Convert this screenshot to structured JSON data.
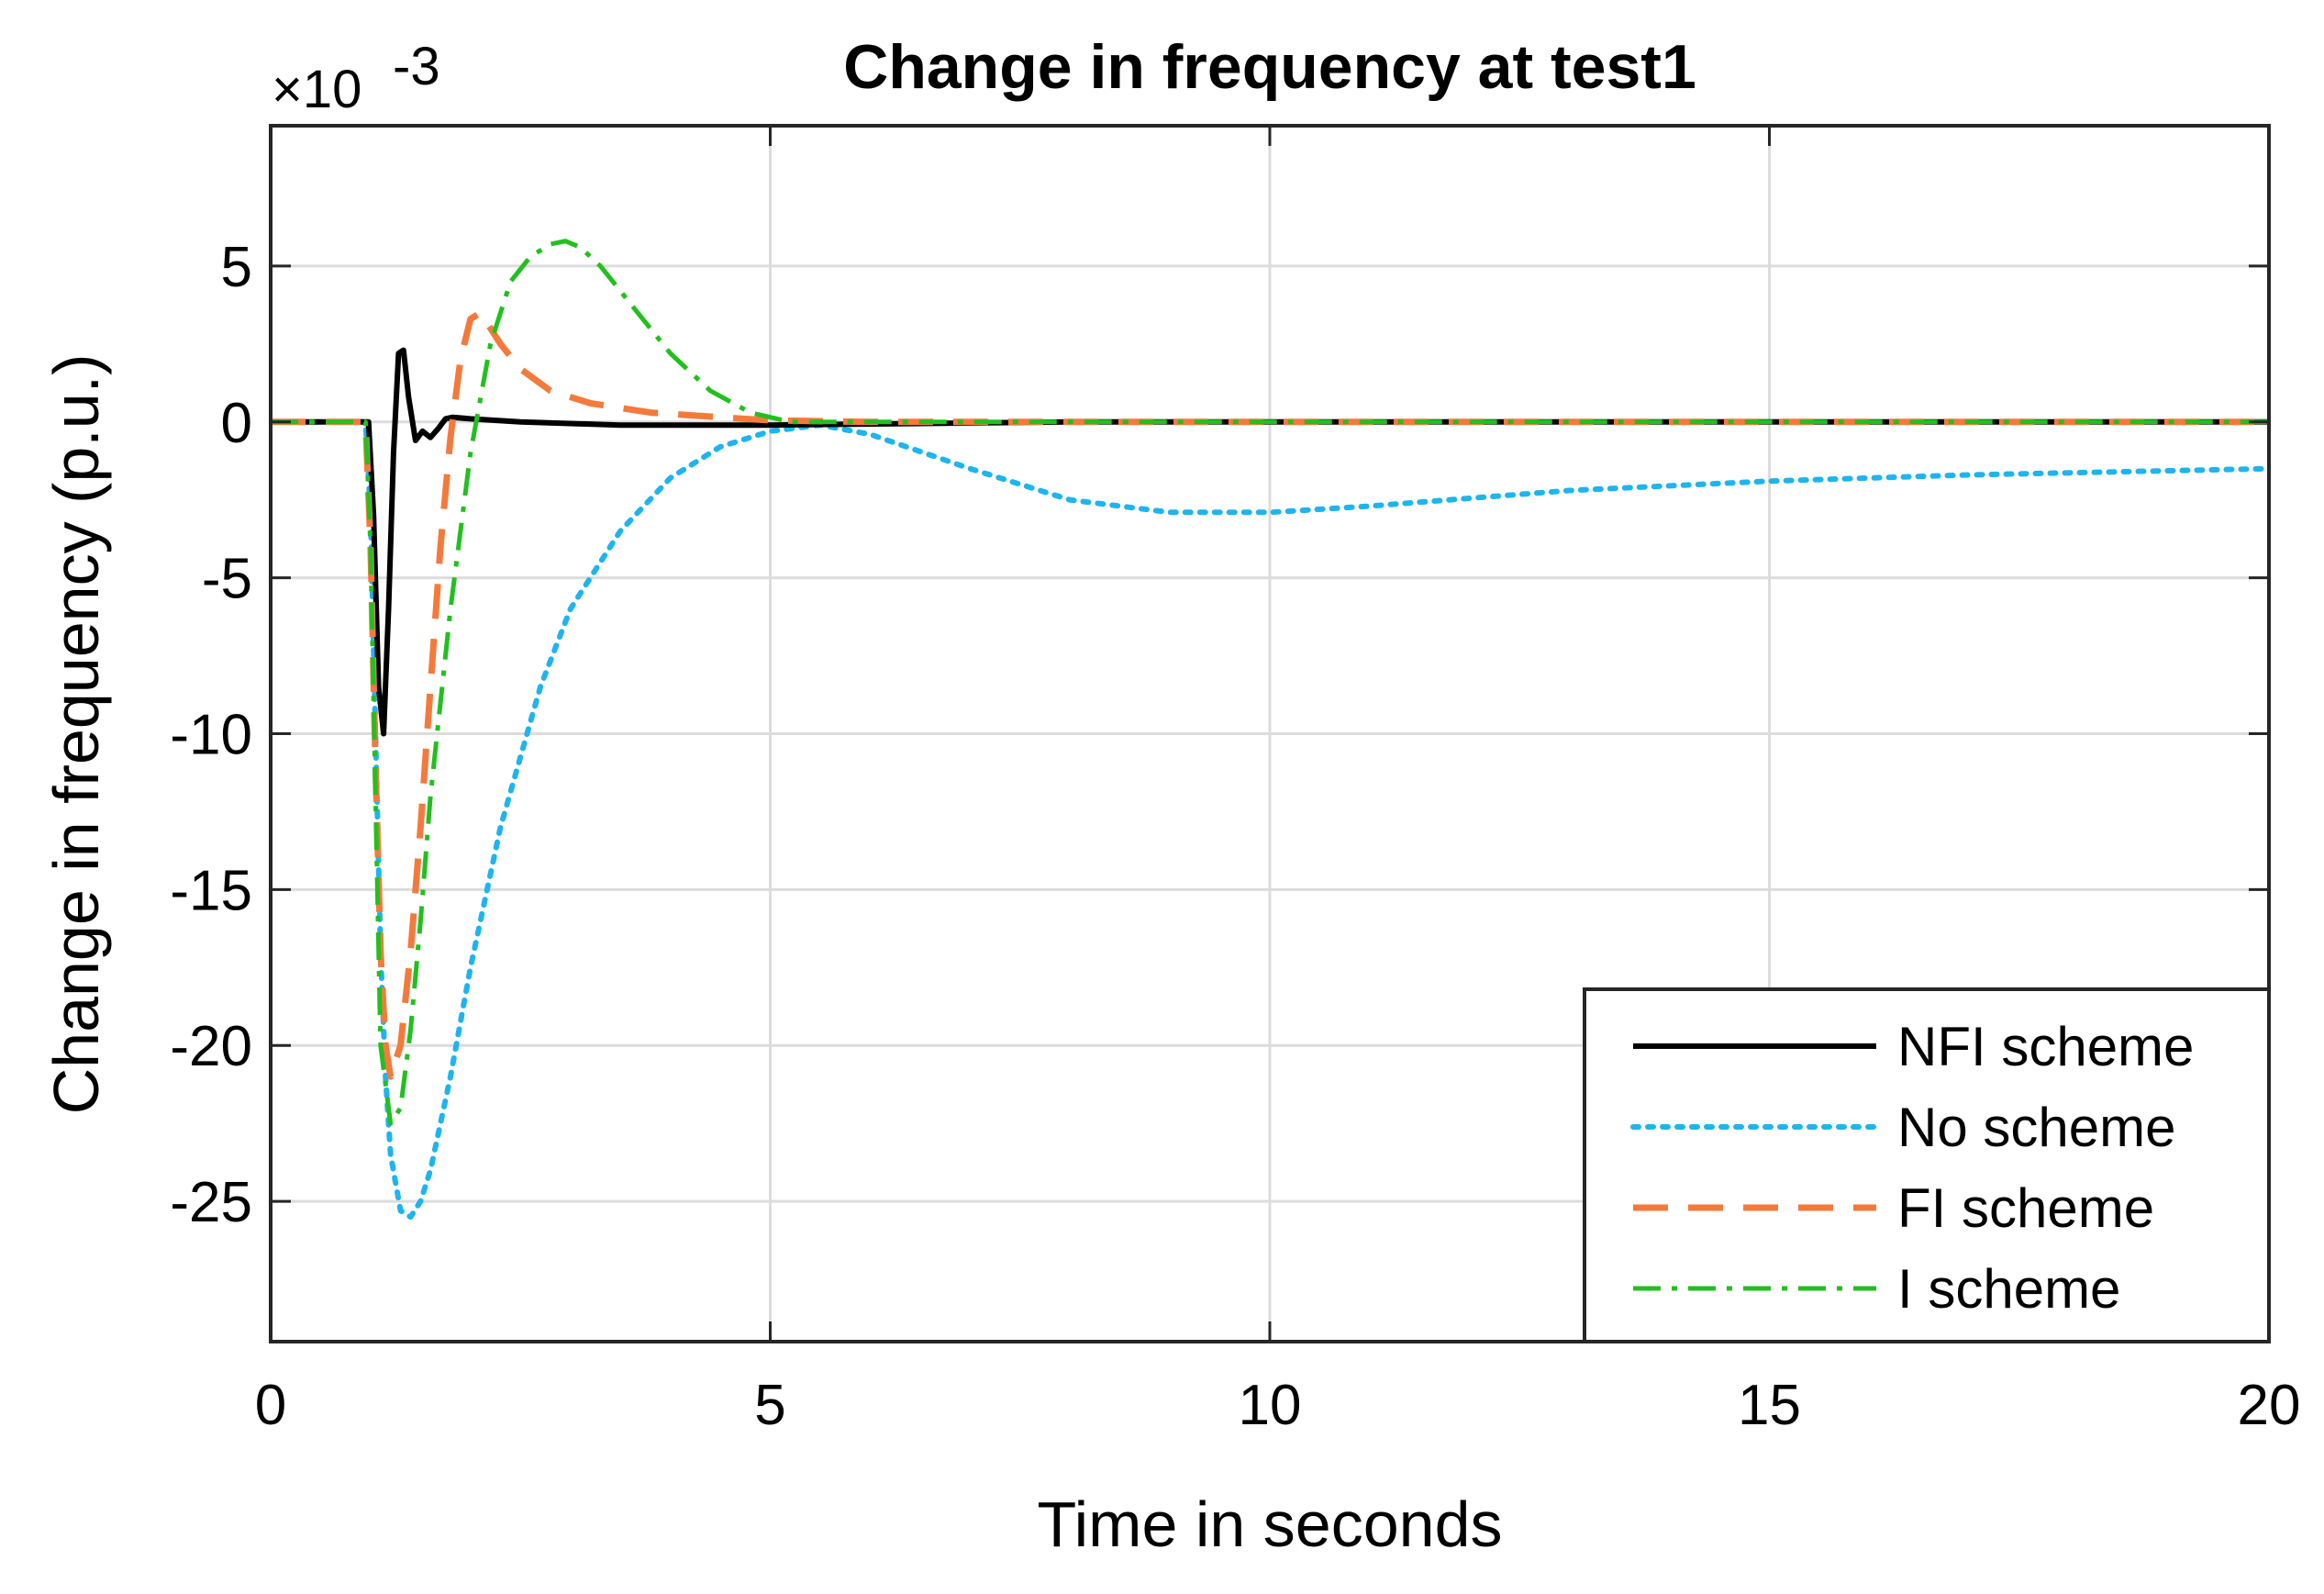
{
  "chart_data": {
    "type": "line",
    "title": "Change in frequency at test1",
    "xlabel": "Time in seconds",
    "ylabel": "Change in frequency (p.u.)",
    "y_exponent_label": "×10",
    "y_exponent_power": "-3",
    "xlim": [
      0,
      20
    ],
    "ylim": [
      -29.5,
      9.5
    ],
    "xticks": [
      0,
      5,
      10,
      15,
      20
    ],
    "xtick_labels": [
      "0",
      "5",
      "10",
      "15",
      "20"
    ],
    "yticks": [
      5,
      0,
      -5,
      -10,
      -15,
      -20,
      -25
    ],
    "ytick_labels": [
      "5",
      "0",
      "-5",
      "-10",
      "-15",
      "-20",
      "-25"
    ],
    "grid": true,
    "legend_position": "bottom-right",
    "series": [
      {
        "name": "NFI scheme",
        "color": "#000000",
        "style": "solid",
        "x": [
          0,
          0.9,
          0.98,
          1.03,
          1.08,
          1.13,
          1.18,
          1.23,
          1.28,
          1.33,
          1.38,
          1.45,
          1.52,
          1.6,
          1.68,
          1.75,
          1.82,
          2.0,
          2.5,
          3.5,
          5,
          8,
          12,
          16,
          20
        ],
        "y": [
          0,
          0,
          0,
          -3,
          -8.5,
          -10,
          -6,
          -1,
          2.2,
          2.3,
          0.8,
          -0.6,
          -0.3,
          -0.5,
          -0.2,
          0.1,
          0.15,
          0.1,
          0,
          -0.1,
          -0.1,
          0,
          0,
          0,
          0
        ]
      },
      {
        "name": "No scheme",
        "color": "#1eb4f0",
        "style": "dotted",
        "x": [
          0,
          0.95,
          1.0,
          1.05,
          1.1,
          1.15,
          1.2,
          1.3,
          1.4,
          1.5,
          1.6,
          1.8,
          2.0,
          2.3,
          2.7,
          3.0,
          3.5,
          4.0,
          4.5,
          5.0,
          5.5,
          6,
          7,
          8,
          9,
          10,
          11,
          13,
          15,
          17,
          20
        ],
        "y": [
          0,
          0,
          -3,
          -10,
          -17,
          -21,
          -23.5,
          -25.3,
          -25.5,
          -25,
          -24,
          -21,
          -17.5,
          -13,
          -8.5,
          -6,
          -3.5,
          -1.8,
          -0.8,
          -0.3,
          -0.1,
          -0.4,
          -1.5,
          -2.5,
          -2.9,
          -2.9,
          -2.7,
          -2.2,
          -1.9,
          -1.7,
          -1.5
        ]
      },
      {
        "name": "FI scheme",
        "color": "#f47a3c",
        "style": "dashed",
        "x": [
          0,
          0.95,
          1.0,
          1.05,
          1.1,
          1.15,
          1.2,
          1.3,
          1.4,
          1.5,
          1.6,
          1.7,
          1.8,
          1.9,
          2.0,
          2.1,
          2.3,
          2.5,
          2.8,
          3.2,
          3.8,
          4.5,
          5.0,
          6,
          8,
          12,
          20
        ],
        "y": [
          0,
          0,
          -4,
          -11,
          -17,
          -20,
          -21,
          -20,
          -17,
          -13,
          -8.5,
          -4,
          -0.5,
          2,
          3.3,
          3.5,
          2.5,
          1.7,
          1,
          0.6,
          0.3,
          0.15,
          0.05,
          0,
          0,
          0,
          0
        ]
      },
      {
        "name": "I scheme",
        "color": "#22c01e",
        "style": "dashdot",
        "x": [
          0,
          0.95,
          1.0,
          1.05,
          1.1,
          1.2,
          1.3,
          1.4,
          1.5,
          1.6,
          1.8,
          2.0,
          2.2,
          2.4,
          2.6,
          2.8,
          2.95,
          3.1,
          3.3,
          3.6,
          4.0,
          4.4,
          4.8,
          5.2,
          6,
          8,
          12,
          20
        ],
        "y": [
          0,
          0,
          -4,
          -12,
          -20,
          -22.5,
          -22,
          -19.5,
          -16,
          -12,
          -6,
          -1,
          2.5,
          4.5,
          5.3,
          5.7,
          5.8,
          5.6,
          5,
          3.8,
          2.2,
          1,
          0.3,
          0,
          0,
          0,
          0,
          0
        ]
      }
    ]
  }
}
